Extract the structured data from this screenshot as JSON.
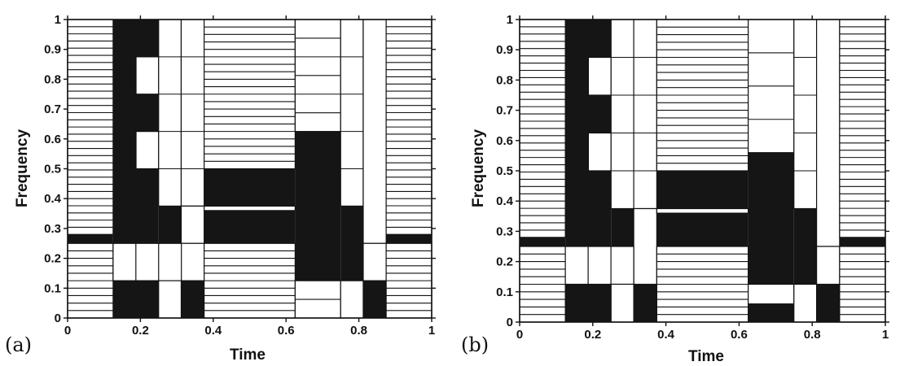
{
  "chart_data": [
    {
      "type": "heatmap",
      "panel_label": "(a)",
      "xlabel": "Time",
      "ylabel": "Frequency",
      "xlim": [
        0,
        1
      ],
      "ylim": [
        0,
        1
      ],
      "xticks": [
        "0",
        "0.2",
        "0.4",
        "0.6",
        "0.8",
        "1"
      ],
      "yticks": [
        "0",
        "0.1",
        "0.2",
        "0.3",
        "0.4",
        "0.5",
        "0.6",
        "0.7",
        "0.8",
        "0.9",
        "1"
      ],
      "tiles": [
        {
          "t0": 0,
          "t1": 0.125,
          "f0": 0.28,
          "f1": 1,
          "dark": false,
          "rows": 30
        },
        {
          "t0": 0,
          "t1": 0.125,
          "f0": 0.25,
          "f1": 0.28,
          "dark": true
        },
        {
          "t0": 0,
          "t1": 0.125,
          "f0": 0,
          "f1": 0.25,
          "dark": false,
          "rows": 10
        },
        {
          "t0": 0.125,
          "t1": 0.25,
          "f0": 0,
          "f1": 1,
          "dark": true
        },
        {
          "t0": 0.188,
          "t1": 0.25,
          "f0": 0.75,
          "f1": 0.875,
          "dark": false
        },
        {
          "t0": 0.188,
          "t1": 0.25,
          "f0": 0.5,
          "f1": 0.625,
          "dark": false
        },
        {
          "t0": 0.25,
          "t1": 0.312,
          "f0": 0.375,
          "f1": 1,
          "dark": false,
          "cols": 1,
          "rows": 5
        },
        {
          "t0": 0.312,
          "t1": 0.375,
          "f0": 0.375,
          "f1": 1,
          "dark": false,
          "cols": 1,
          "rows": 5
        },
        {
          "t0": 0.25,
          "t1": 0.312,
          "f0": 0.25,
          "f1": 0.375,
          "dark": true
        },
        {
          "t0": 0.312,
          "t1": 0.375,
          "f0": 0.25,
          "f1": 0.375,
          "dark": false
        },
        {
          "t0": 0.125,
          "t1": 0.375,
          "f0": 0.125,
          "f1": 0.25,
          "dark": false,
          "cols": 4
        },
        {
          "t0": 0.312,
          "t1": 0.375,
          "f0": 0,
          "f1": 0.125,
          "dark": true
        },
        {
          "t0": 0.25,
          "t1": 0.312,
          "f0": 0,
          "f1": 0.125,
          "dark": false
        },
        {
          "t0": 0.375,
          "t1": 0.625,
          "f0": 0.5,
          "f1": 1,
          "dark": false,
          "rows": 20
        },
        {
          "t0": 0.375,
          "t1": 0.625,
          "f0": 0.25,
          "f1": 0.5,
          "dark": true
        },
        {
          "t0": 0.375,
          "t1": 0.625,
          "f0": 0.36,
          "f1": 0.375,
          "dark": false
        },
        {
          "t0": 0.375,
          "t1": 0.625,
          "f0": 0,
          "f1": 0.25,
          "dark": false,
          "rows": 10
        },
        {
          "t0": 0.625,
          "t1": 0.75,
          "f0": 0.625,
          "f1": 1,
          "dark": false,
          "rows": 6
        },
        {
          "t0": 0.625,
          "t1": 0.75,
          "f0": 0.125,
          "f1": 0.625,
          "dark": true
        },
        {
          "t0": 0.625,
          "t1": 0.75,
          "f0": 0,
          "f1": 0.125,
          "dark": false,
          "rows": 2
        },
        {
          "t0": 0.75,
          "t1": 0.812,
          "f0": 0.375,
          "f1": 1,
          "dark": false,
          "rows": 5
        },
        {
          "t0": 0.75,
          "t1": 0.812,
          "f0": 0.125,
          "f1": 0.375,
          "dark": true
        },
        {
          "t0": 0.75,
          "t1": 0.812,
          "f0": 0,
          "f1": 0.125,
          "dark": false
        },
        {
          "t0": 0.812,
          "t1": 0.875,
          "f0": 0.25,
          "f1": 1,
          "dark": false
        },
        {
          "t0": 0.812,
          "t1": 0.875,
          "f0": 0.125,
          "f1": 0.25,
          "dark": false
        },
        {
          "t0": 0.812,
          "t1": 0.875,
          "f0": 0,
          "f1": 0.125,
          "dark": true
        },
        {
          "t0": 0.875,
          "t1": 1,
          "f0": 0.28,
          "f1": 1,
          "dark": false,
          "rows": 30
        },
        {
          "t0": 0.875,
          "t1": 1,
          "f0": 0.25,
          "f1": 0.28,
          "dark": true
        },
        {
          "t0": 0.875,
          "t1": 1,
          "f0": 0,
          "f1": 0.25,
          "dark": false,
          "rows": 10
        }
      ]
    },
    {
      "type": "heatmap",
      "panel_label": "(b)",
      "xlabel": "Time",
      "ylabel": "Frequency",
      "xlim": [
        0,
        1
      ],
      "ylim": [
        0,
        1
      ],
      "xticks": [
        "0",
        "0.2",
        "0.4",
        "0.6",
        "0.8",
        "1"
      ],
      "yticks": [
        "0",
        "0.1",
        "0.2",
        "0.3",
        "0.4",
        "0.5",
        "0.6",
        "0.7",
        "0.8",
        "0.9",
        "1"
      ],
      "tiles": [
        {
          "t0": 0,
          "t1": 0.125,
          "f0": 0.28,
          "f1": 1,
          "dark": false,
          "rows": 30
        },
        {
          "t0": 0,
          "t1": 0.125,
          "f0": 0.25,
          "f1": 0.28,
          "dark": true
        },
        {
          "t0": 0,
          "t1": 0.125,
          "f0": 0,
          "f1": 0.25,
          "dark": false,
          "rows": 10
        },
        {
          "t0": 0.125,
          "t1": 0.25,
          "f0": 0,
          "f1": 1,
          "dark": true
        },
        {
          "t0": 0.188,
          "t1": 0.25,
          "f0": 0.75,
          "f1": 0.875,
          "dark": false
        },
        {
          "t0": 0.188,
          "t1": 0.25,
          "f0": 0.5,
          "f1": 0.625,
          "dark": false
        },
        {
          "t0": 0.25,
          "t1": 0.312,
          "f0": 0.375,
          "f1": 1,
          "dark": false,
          "rows": 5
        },
        {
          "t0": 0.312,
          "t1": 0.375,
          "f0": 0.375,
          "f1": 1,
          "dark": false,
          "rows": 5
        },
        {
          "t0": 0.25,
          "t1": 0.312,
          "f0": 0.25,
          "f1": 0.375,
          "dark": true
        },
        {
          "t0": 0.312,
          "t1": 0.375,
          "f0": 0.125,
          "f1": 0.375,
          "dark": false
        },
        {
          "t0": 0.125,
          "t1": 0.312,
          "f0": 0.125,
          "f1": 0.25,
          "dark": false,
          "cols": 3
        },
        {
          "t0": 0.25,
          "t1": 0.312,
          "f0": 0,
          "f1": 0.125,
          "dark": false
        },
        {
          "t0": 0.312,
          "t1": 0.375,
          "f0": 0,
          "f1": 0.125,
          "dark": true
        },
        {
          "t0": 0.375,
          "t1": 0.625,
          "f0": 0.5,
          "f1": 1,
          "dark": false,
          "rows": 20
        },
        {
          "t0": 0.375,
          "t1": 0.625,
          "f0": 0.25,
          "f1": 0.5,
          "dark": true
        },
        {
          "t0": 0.375,
          "t1": 0.625,
          "f0": 0.36,
          "f1": 0.375,
          "dark": false
        },
        {
          "t0": 0.375,
          "t1": 0.625,
          "f0": 0,
          "f1": 0.25,
          "dark": false,
          "rows": 10
        },
        {
          "t0": 0.625,
          "t1": 0.75,
          "f0": 0.56,
          "f1": 1,
          "dark": false,
          "rows": 4
        },
        {
          "t0": 0.625,
          "t1": 0.75,
          "f0": 0.125,
          "f1": 0.56,
          "dark": true
        },
        {
          "t0": 0.625,
          "t1": 0.75,
          "f0": 0.06,
          "f1": 0.125,
          "dark": false
        },
        {
          "t0": 0.625,
          "t1": 0.75,
          "f0": 0,
          "f1": 0.06,
          "dark": true
        },
        {
          "t0": 0.75,
          "t1": 0.812,
          "f0": 0.375,
          "f1": 1,
          "dark": false,
          "rows": 5
        },
        {
          "t0": 0.75,
          "t1": 0.812,
          "f0": 0.125,
          "f1": 0.375,
          "dark": true
        },
        {
          "t0": 0.75,
          "t1": 0.812,
          "f0": 0,
          "f1": 0.125,
          "dark": false
        },
        {
          "t0": 0.812,
          "t1": 0.875,
          "f0": 0.25,
          "f1": 1,
          "dark": false
        },
        {
          "t0": 0.812,
          "t1": 0.875,
          "f0": 0.125,
          "f1": 0.25,
          "dark": false
        },
        {
          "t0": 0.812,
          "t1": 0.875,
          "f0": 0,
          "f1": 0.125,
          "dark": true
        },
        {
          "t0": 0.875,
          "t1": 1,
          "f0": 0.28,
          "f1": 1,
          "dark": false,
          "rows": 30
        },
        {
          "t0": 0.875,
          "t1": 1,
          "f0": 0.25,
          "f1": 0.28,
          "dark": true
        },
        {
          "t0": 0.875,
          "t1": 1,
          "f0": 0,
          "f1": 0.25,
          "dark": false,
          "rows": 10
        }
      ]
    }
  ],
  "colors": {
    "dark": "#151515",
    "light": "#ffffff",
    "line": "#111111",
    "axis": "#111111"
  }
}
